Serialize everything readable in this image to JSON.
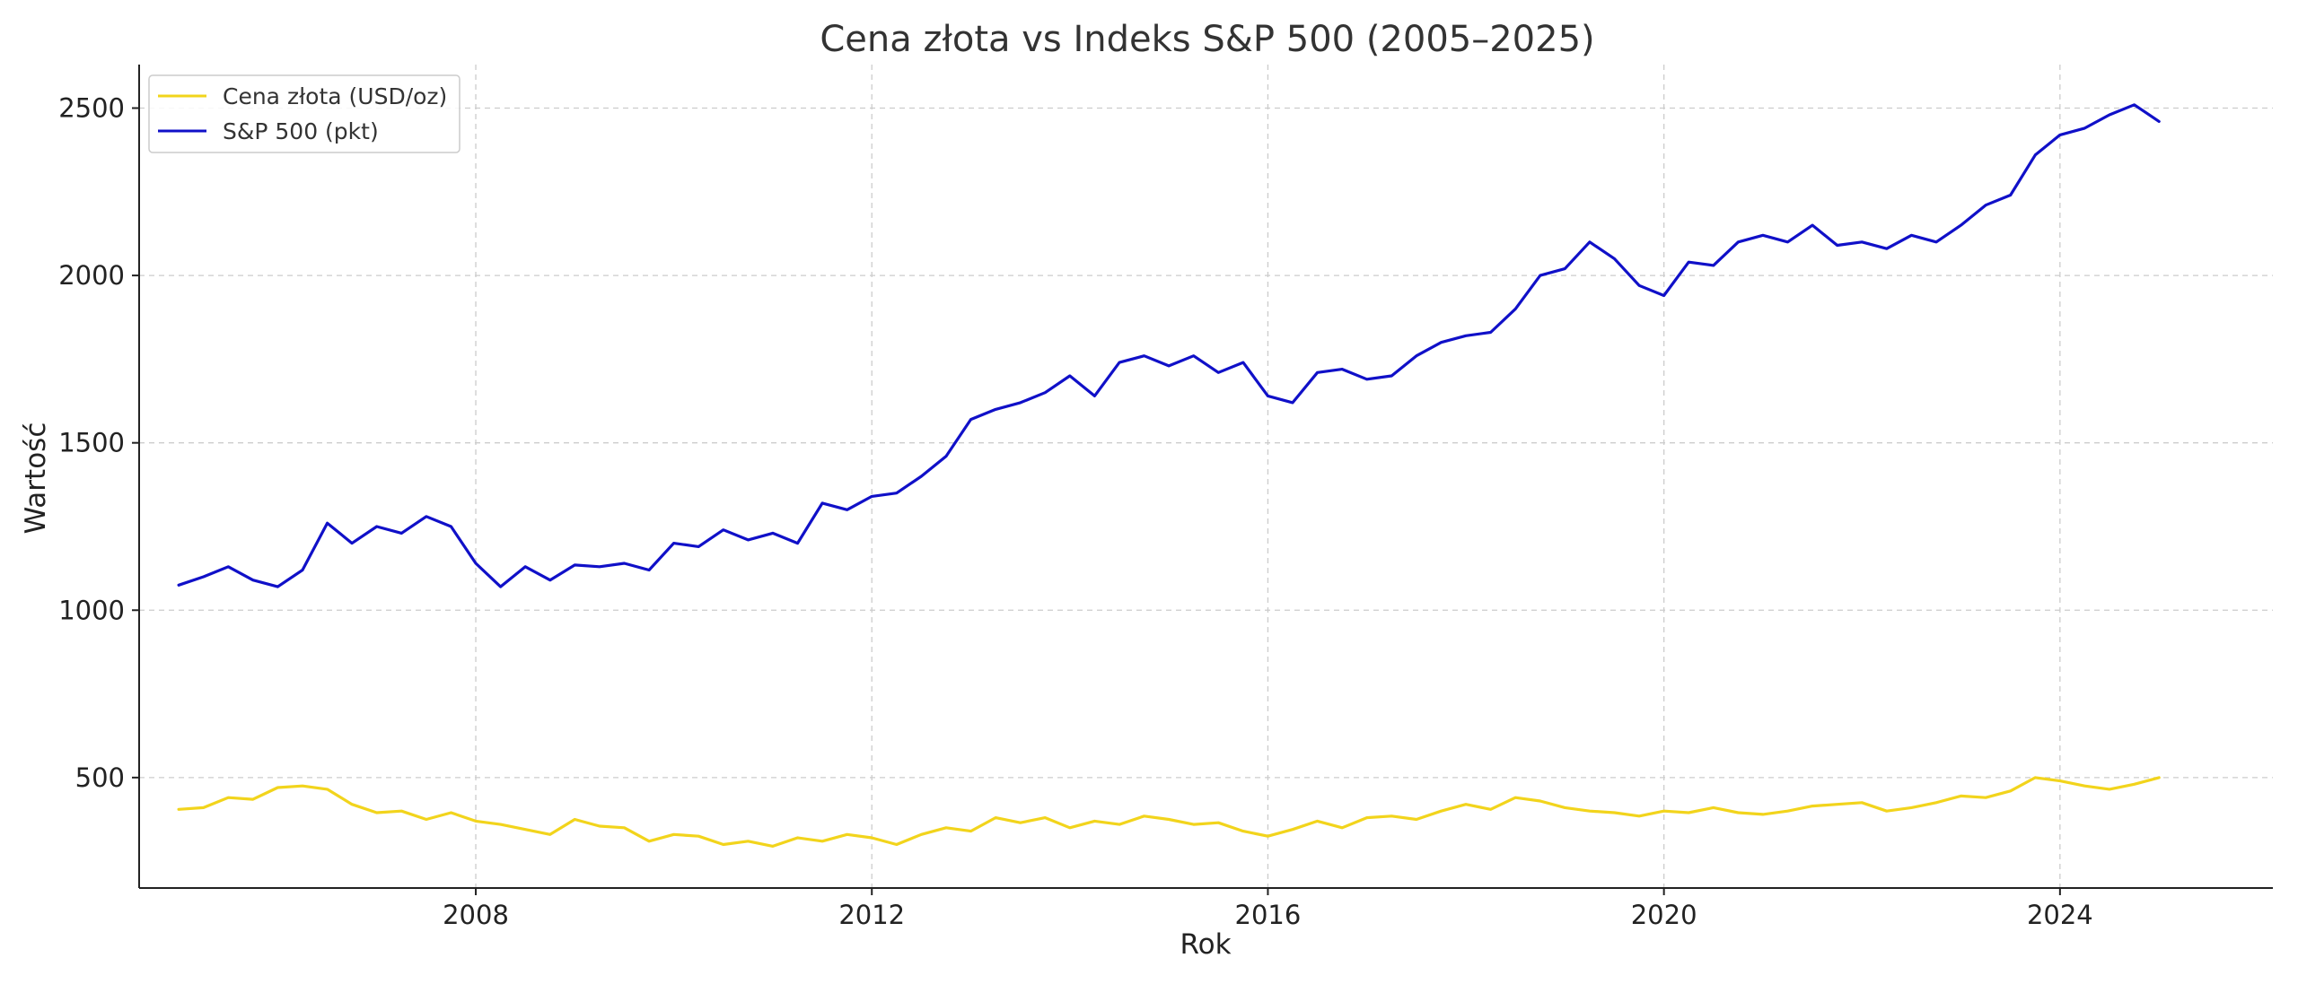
{
  "chart_data": {
    "type": "line",
    "title": "Cena złota vs Indeks S&P 500 (2005–2025)",
    "xlabel": "Rok",
    "ylabel": "Wartość",
    "xlim": [
      2004.6,
      2026.15
    ],
    "ylim": [
      170,
      2630
    ],
    "x_ticks": [
      2008,
      2012,
      2016,
      2020,
      2024
    ],
    "y_ticks": [
      500,
      1000,
      1500,
      2000,
      2500
    ],
    "grid": true,
    "legend_position": "top-left",
    "series": [
      {
        "name": "Cena złota (USD/oz)",
        "color": "#f2d41c",
        "points": [
          [
            2005.0,
            405
          ],
          [
            2005.25,
            410
          ],
          [
            2005.5,
            440
          ],
          [
            2005.75,
            435
          ],
          [
            2006.0,
            470
          ],
          [
            2006.25,
            475
          ],
          [
            2006.5,
            465
          ],
          [
            2006.75,
            420
          ],
          [
            2007.0,
            395
          ],
          [
            2007.25,
            400
          ],
          [
            2007.5,
            375
          ],
          [
            2007.75,
            395
          ],
          [
            2008.0,
            370
          ],
          [
            2008.25,
            360
          ],
          [
            2008.5,
            345
          ],
          [
            2008.75,
            330
          ],
          [
            2009.0,
            375
          ],
          [
            2009.25,
            355
          ],
          [
            2009.5,
            350
          ],
          [
            2009.75,
            310
          ],
          [
            2010.0,
            330
          ],
          [
            2010.25,
            325
          ],
          [
            2010.5,
            300
          ],
          [
            2010.75,
            310
          ],
          [
            2011.0,
            295
          ],
          [
            2011.25,
            320
          ],
          [
            2011.5,
            310
          ],
          [
            2011.75,
            330
          ],
          [
            2012.0,
            320
          ],
          [
            2012.25,
            300
          ],
          [
            2012.5,
            330
          ],
          [
            2012.75,
            350
          ],
          [
            2013.0,
            340
          ],
          [
            2013.25,
            380
          ],
          [
            2013.5,
            365
          ],
          [
            2013.75,
            380
          ],
          [
            2014.0,
            350
          ],
          [
            2014.25,
            370
          ],
          [
            2014.5,
            360
          ],
          [
            2014.75,
            385
          ],
          [
            2015.0,
            375
          ],
          [
            2015.25,
            360
          ],
          [
            2015.5,
            365
          ],
          [
            2015.75,
            340
          ],
          [
            2016.0,
            325
          ],
          [
            2016.25,
            345
          ],
          [
            2016.5,
            370
          ],
          [
            2016.75,
            350
          ],
          [
            2017.0,
            380
          ],
          [
            2017.25,
            385
          ],
          [
            2017.5,
            375
          ],
          [
            2017.75,
            400
          ],
          [
            2018.0,
            420
          ],
          [
            2018.25,
            405
          ],
          [
            2018.5,
            440
          ],
          [
            2018.75,
            430
          ],
          [
            2019.0,
            410
          ],
          [
            2019.25,
            400
          ],
          [
            2019.5,
            395
          ],
          [
            2019.75,
            385
          ],
          [
            2020.0,
            400
          ],
          [
            2020.25,
            395
          ],
          [
            2020.5,
            410
          ],
          [
            2020.75,
            395
          ],
          [
            2021.0,
            390
          ],
          [
            2021.25,
            400
          ],
          [
            2021.5,
            415
          ],
          [
            2021.75,
            420
          ],
          [
            2022.0,
            425
          ],
          [
            2022.25,
            400
          ],
          [
            2022.5,
            410
          ],
          [
            2022.75,
            425
          ],
          [
            2023.0,
            445
          ],
          [
            2023.25,
            440
          ],
          [
            2023.5,
            460
          ],
          [
            2023.75,
            500
          ],
          [
            2024.0,
            490
          ],
          [
            2024.25,
            475
          ],
          [
            2024.5,
            465
          ],
          [
            2024.75,
            480
          ],
          [
            2025.0,
            500
          ]
        ]
      },
      {
        "name": "S&P 500 (pkt)",
        "color": "#1010c8",
        "points": [
          [
            2005.0,
            1075
          ],
          [
            2005.25,
            1100
          ],
          [
            2005.5,
            1130
          ],
          [
            2005.75,
            1090
          ],
          [
            2006.0,
            1070
          ],
          [
            2006.25,
            1120
          ],
          [
            2006.5,
            1260
          ],
          [
            2006.75,
            1200
          ],
          [
            2007.0,
            1250
          ],
          [
            2007.25,
            1230
          ],
          [
            2007.5,
            1280
          ],
          [
            2007.75,
            1250
          ],
          [
            2008.0,
            1140
          ],
          [
            2008.25,
            1070
          ],
          [
            2008.5,
            1130
          ],
          [
            2008.75,
            1090
          ],
          [
            2009.0,
            1135
          ],
          [
            2009.25,
            1130
          ],
          [
            2009.5,
            1140
          ],
          [
            2009.75,
            1120
          ],
          [
            2010.0,
            1200
          ],
          [
            2010.25,
            1190
          ],
          [
            2010.5,
            1240
          ],
          [
            2010.75,
            1210
          ],
          [
            2011.0,
            1230
          ],
          [
            2011.25,
            1200
          ],
          [
            2011.5,
            1320
          ],
          [
            2011.75,
            1300
          ],
          [
            2012.0,
            1340
          ],
          [
            2012.25,
            1350
          ],
          [
            2012.5,
            1400
          ],
          [
            2012.75,
            1460
          ],
          [
            2013.0,
            1570
          ],
          [
            2013.25,
            1600
          ],
          [
            2013.5,
            1620
          ],
          [
            2013.75,
            1650
          ],
          [
            2014.0,
            1700
          ],
          [
            2014.25,
            1640
          ],
          [
            2014.5,
            1740
          ],
          [
            2014.75,
            1760
          ],
          [
            2015.0,
            1730
          ],
          [
            2015.25,
            1760
          ],
          [
            2015.5,
            1710
          ],
          [
            2015.75,
            1740
          ],
          [
            2016.0,
            1640
          ],
          [
            2016.25,
            1620
          ],
          [
            2016.5,
            1710
          ],
          [
            2016.75,
            1720
          ],
          [
            2017.0,
            1690
          ],
          [
            2017.25,
            1700
          ],
          [
            2017.5,
            1760
          ],
          [
            2017.75,
            1800
          ],
          [
            2018.0,
            1820
          ],
          [
            2018.25,
            1830
          ],
          [
            2018.5,
            1900
          ],
          [
            2018.75,
            2000
          ],
          [
            2019.0,
            2020
          ],
          [
            2019.25,
            2100
          ],
          [
            2019.5,
            2050
          ],
          [
            2019.75,
            1970
          ],
          [
            2020.0,
            1940
          ],
          [
            2020.25,
            2040
          ],
          [
            2020.5,
            2030
          ],
          [
            2020.75,
            2100
          ],
          [
            2021.0,
            2120
          ],
          [
            2021.25,
            2100
          ],
          [
            2021.5,
            2150
          ],
          [
            2021.75,
            2090
          ],
          [
            2022.0,
            2100
          ],
          [
            2022.25,
            2080
          ],
          [
            2022.5,
            2120
          ],
          [
            2022.75,
            2100
          ],
          [
            2023.0,
            2150
          ],
          [
            2023.25,
            2210
          ],
          [
            2023.5,
            2240
          ],
          [
            2023.75,
            2360
          ],
          [
            2024.0,
            2420
          ],
          [
            2024.25,
            2440
          ],
          [
            2024.5,
            2480
          ],
          [
            2024.75,
            2510
          ],
          [
            2025.0,
            2460
          ]
        ]
      }
    ]
  }
}
